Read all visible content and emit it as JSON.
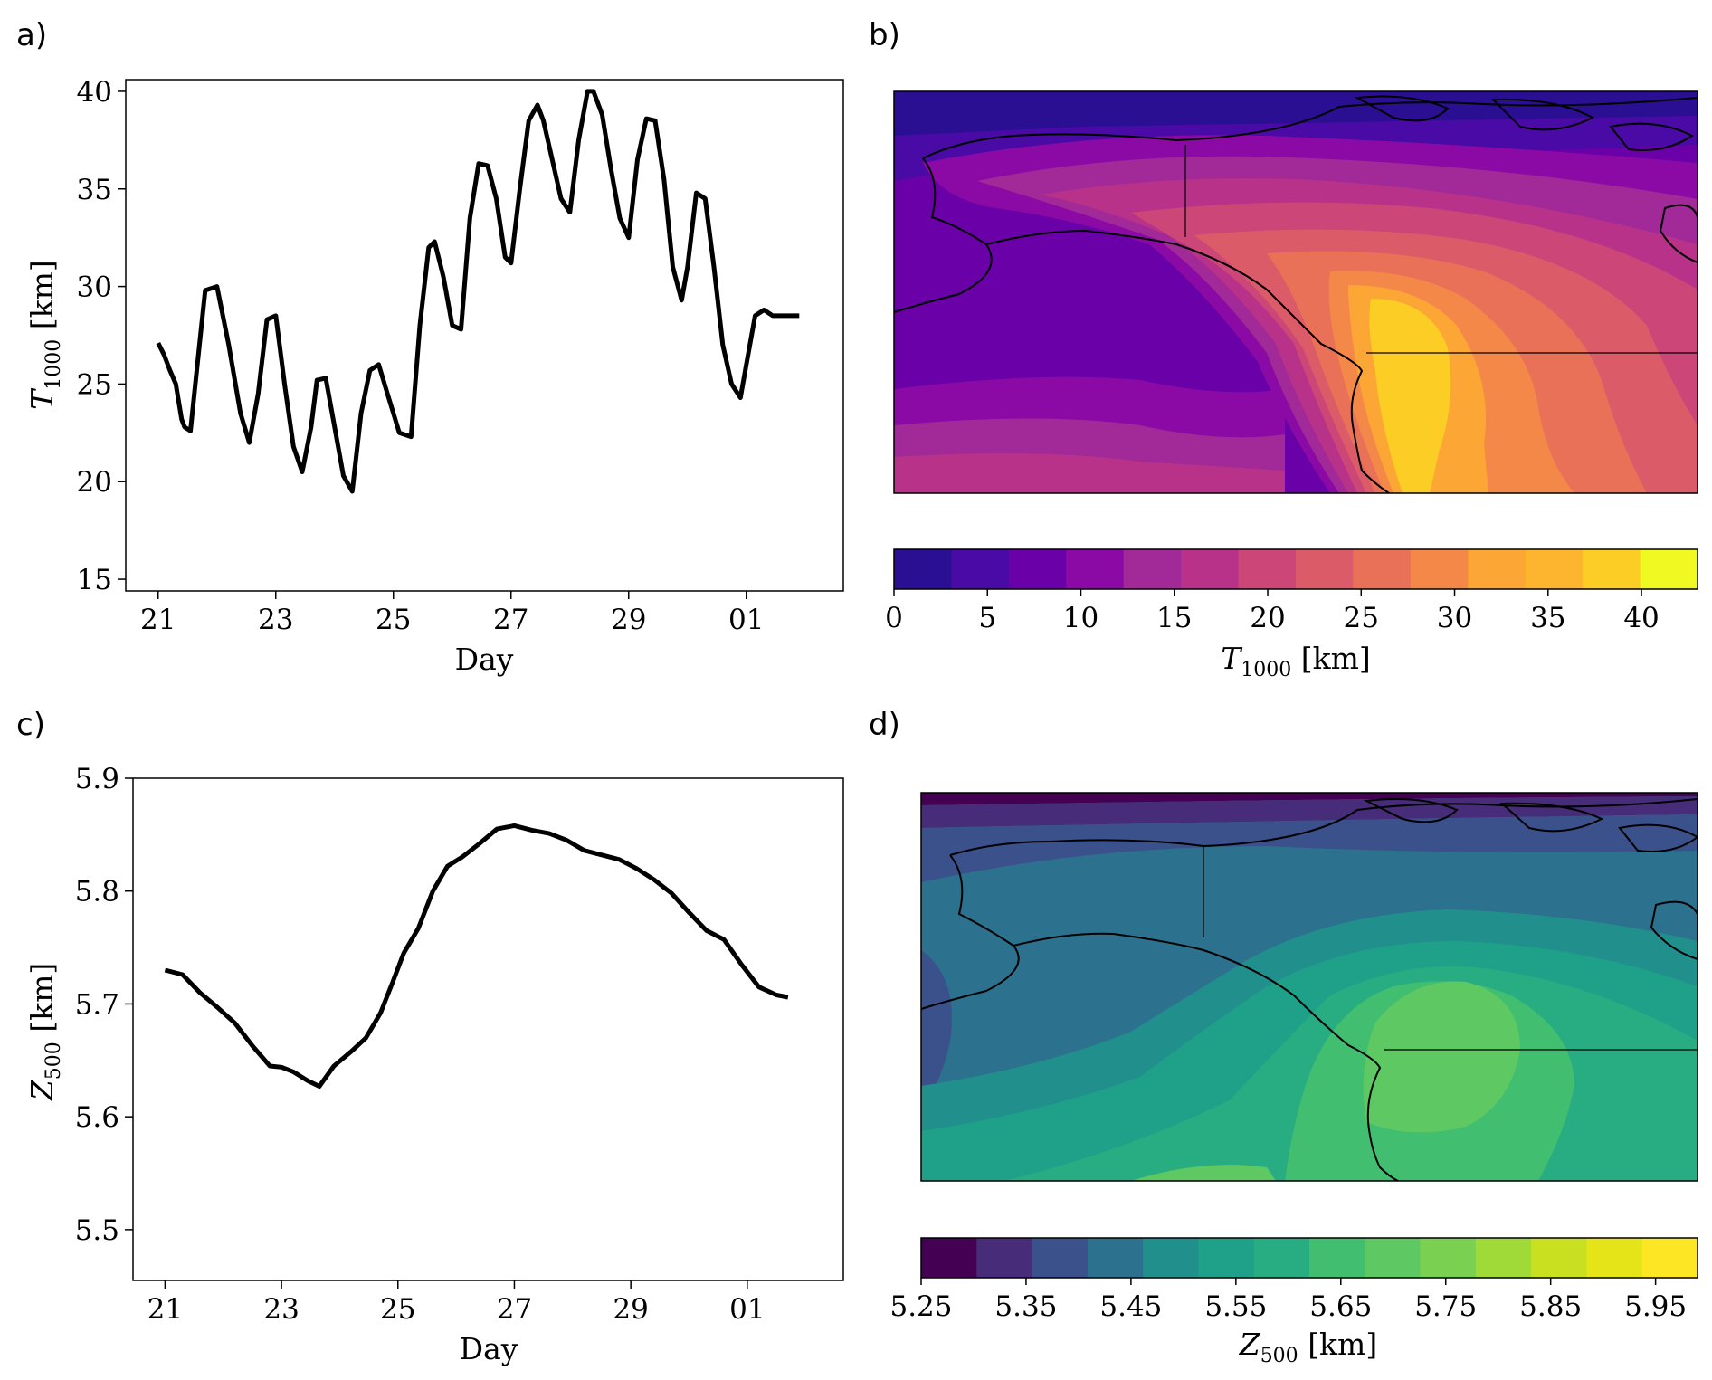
{
  "panels": {
    "a": "a)",
    "b": "b)",
    "c": "c)",
    "d": "d)"
  },
  "colors": {
    "line": "#000000",
    "plasma": [
      "#2a0f93",
      "#4a0aa5",
      "#6a00a8",
      "#8b0aa5",
      "#a12a98",
      "#b83289",
      "#cc4778",
      "#db5c68",
      "#e97158",
      "#f48849",
      "#fca636",
      "#fdb42f",
      "#fcce25",
      "#f0f921"
    ],
    "viridis": [
      "#440154",
      "#472c7a",
      "#3b518b",
      "#2c718e",
      "#21908d",
      "#1fa088",
      "#27ad81",
      "#42be71",
      "#5ec962",
      "#7ad151",
      "#a0da39",
      "#c8e020",
      "#e5e419",
      "#fde725"
    ]
  },
  "chart_data": [
    {
      "panel": "a",
      "type": "line",
      "xlabel": "Day",
      "ylabel_symbol": "T",
      "ylabel_sub": "1000",
      "ylabel_unit": "[km]",
      "xticks": [
        "21",
        "23",
        "25",
        "27",
        "29",
        "01"
      ],
      "yticks": [
        "15",
        "20",
        "25",
        "30",
        "35",
        "40"
      ],
      "xlim": [
        20.45,
        32.65
      ],
      "ylim": [
        14.4,
        40.6
      ],
      "x": [
        21.0,
        21.1,
        21.2,
        21.3,
        21.4,
        21.45,
        21.55,
        21.65,
        21.8,
        22.0,
        22.2,
        22.4,
        22.55,
        22.7,
        22.85,
        23.0,
        23.15,
        23.3,
        23.45,
        23.6,
        23.7,
        23.85,
        24.0,
        24.15,
        24.3,
        24.45,
        24.6,
        24.75,
        24.9,
        25.0,
        25.1,
        25.3,
        25.45,
        25.6,
        25.7,
        25.85,
        26.0,
        26.15,
        26.3,
        26.45,
        26.6,
        26.75,
        26.9,
        27.0,
        27.15,
        27.3,
        27.45,
        27.55,
        27.7,
        27.85,
        28.0,
        28.15,
        28.3,
        28.4,
        28.55,
        28.7,
        28.85,
        29.0,
        29.15,
        29.3,
        29.45,
        29.6,
        29.75,
        29.9,
        30.0,
        30.15,
        30.3,
        30.45,
        30.6,
        30.75,
        30.9,
        31.0,
        31.15,
        31.3,
        31.45,
        31.6,
        31.75,
        31.9
      ],
      "y": [
        27.1,
        26.5,
        25.7,
        25.0,
        23.2,
        22.8,
        22.6,
        25.5,
        29.8,
        30.0,
        27.0,
        23.5,
        22.0,
        24.5,
        28.3,
        28.5,
        25.0,
        21.8,
        20.5,
        22.8,
        25.2,
        25.3,
        22.8,
        20.3,
        19.5,
        23.5,
        25.7,
        26.0,
        24.5,
        23.5,
        22.5,
        22.3,
        28.0,
        32.0,
        32.3,
        30.5,
        28.0,
        27.8,
        33.5,
        36.3,
        36.2,
        34.5,
        31.5,
        31.2,
        35.0,
        38.5,
        39.3,
        38.5,
        36.5,
        34.5,
        33.8,
        37.5,
        40.0,
        40.0,
        38.8,
        36.0,
        33.5,
        32.5,
        36.5,
        38.6,
        38.5,
        35.5,
        31.0,
        29.3,
        31.0,
        34.8,
        34.5,
        31.0,
        27.0,
        25.0,
        24.3,
        26.0,
        28.5,
        28.8,
        28.5,
        28.5,
        28.5,
        28.5
      ]
    },
    {
      "panel": "b",
      "type": "heatmap",
      "colorbar_label_symbol": "T",
      "colorbar_label_sub": "1000",
      "colorbar_label_unit": "[km]",
      "colorbar_ticks": [
        "0",
        "5",
        "10",
        "15",
        "20",
        "25",
        "30",
        "35",
        "40"
      ],
      "range": [
        0,
        43
      ],
      "levels": 14
    },
    {
      "panel": "c",
      "type": "line",
      "xlabel": "Day",
      "ylabel_symbol": "Z",
      "ylabel_sub": "500",
      "ylabel_unit": "[km]",
      "xticks": [
        "21",
        "23",
        "25",
        "27",
        "29",
        "01"
      ],
      "yticks": [
        "5.5",
        "5.6",
        "5.7",
        "5.8",
        "5.9"
      ],
      "xlim": [
        20.45,
        32.65
      ],
      "ylim": [
        5.455,
        5.9
      ],
      "x": [
        21.0,
        21.3,
        21.6,
        21.9,
        22.2,
        22.5,
        22.8,
        23.0,
        23.2,
        23.45,
        23.65,
        23.9,
        24.2,
        24.45,
        24.7,
        24.9,
        25.1,
        25.35,
        25.6,
        25.85,
        26.1,
        26.4,
        26.7,
        27.0,
        27.3,
        27.6,
        27.9,
        28.2,
        28.5,
        28.8,
        29.1,
        29.4,
        29.7,
        30.0,
        30.3,
        30.6,
        30.9,
        31.2,
        31.5,
        31.7
      ],
      "y": [
        5.73,
        5.726,
        5.71,
        5.697,
        5.683,
        5.663,
        5.645,
        5.644,
        5.64,
        5.632,
        5.627,
        5.645,
        5.658,
        5.67,
        5.692,
        5.718,
        5.745,
        5.767,
        5.8,
        5.822,
        5.83,
        5.842,
        5.855,
        5.858,
        5.854,
        5.851,
        5.845,
        5.836,
        5.832,
        5.828,
        5.82,
        5.81,
        5.798,
        5.781,
        5.765,
        5.757,
        5.735,
        5.715,
        5.708,
        5.706
      ]
    },
    {
      "panel": "d",
      "type": "heatmap",
      "colorbar_label_symbol": "Z",
      "colorbar_label_sub": "500",
      "colorbar_label_unit": "[km]",
      "colorbar_ticks": [
        "5.25",
        "5.35",
        "5.45",
        "5.55",
        "5.65",
        "5.75",
        "5.85",
        "5.95"
      ],
      "range": [
        5.25,
        5.99
      ],
      "levels": 14
    }
  ]
}
